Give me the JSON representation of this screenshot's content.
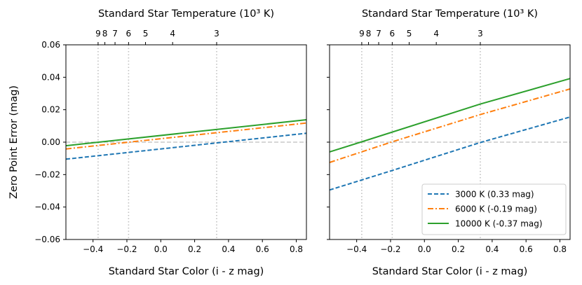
{
  "chart_data": [
    {
      "type": "line",
      "xlabel": "Standard Star Color (i - z mag)",
      "ylabel": "Zero Point Error (mag)",
      "top_xlabel": "Standard Star Temperature (10³ K)",
      "xlim": [
        -0.56,
        0.86
      ],
      "ylim": [
        -0.06,
        0.06
      ],
      "xticks": [
        -0.4,
        -0.2,
        0.0,
        0.2,
        0.4,
        0.6,
        0.8
      ],
      "xtick_labels": [
        "−0.4",
        "−0.2",
        "0.0",
        "0.2",
        "0.4",
        "0.6",
        "0.8"
      ],
      "yticks": [
        -0.06,
        -0.04,
        -0.02,
        0.0,
        0.02,
        0.04,
        0.06
      ],
      "ytick_labels": [
        "−0.06",
        "−0.04",
        "−0.02",
        "0.00",
        "0.02",
        "0.04",
        "0.06"
      ],
      "top_ticks": [
        {
          "label": "9",
          "x": -0.37
        },
        {
          "label": "8",
          "x": -0.33
        },
        {
          "label": "7",
          "x": -0.27
        },
        {
          "label": "6",
          "x": -0.19
        },
        {
          "label": "5",
          "x": -0.09
        },
        {
          "label": "4",
          "x": 0.07
        },
        {
          "label": "3",
          "x": 0.33
        }
      ],
      "vlines": [
        -0.37,
        -0.19,
        0.33
      ],
      "hline": 0.0,
      "series": [
        {
          "name": "3000 K (0.33 mag)",
          "color": "#1f77b4",
          "dash": "dashed",
          "x": [
            -0.56,
            0.86
          ],
          "y": [
            -0.0105,
            0.0055
          ]
        },
        {
          "name": "6000 K (-0.19 mag)",
          "color": "#ff7f0e",
          "dash": "dashdot",
          "x": [
            -0.56,
            0.86
          ],
          "y": [
            -0.0042,
            0.0118
          ]
        },
        {
          "name": "10000 K (-0.37 mag)",
          "color": "#2ca02c",
          "dash": "solid",
          "x": [
            -0.56,
            0.86
          ],
          "y": [
            -0.0022,
            0.0138
          ]
        }
      ],
      "show_ylabels": true
    },
    {
      "type": "line",
      "xlabel": "Standard Star Color (i - z mag)",
      "top_xlabel": "Standard Star Temperature (10³ K)",
      "xlim": [
        -0.56,
        0.86
      ],
      "ylim": [
        -0.06,
        0.06
      ],
      "xticks": [
        -0.4,
        -0.2,
        0.0,
        0.2,
        0.4,
        0.6,
        0.8
      ],
      "xtick_labels": [
        "−0.4",
        "−0.2",
        "0.0",
        "0.2",
        "0.4",
        "0.6",
        "0.8"
      ],
      "yticks": [
        -0.06,
        -0.04,
        -0.02,
        0.0,
        0.02,
        0.04,
        0.06
      ],
      "top_ticks": [
        {
          "label": "9",
          "x": -0.37
        },
        {
          "label": "8",
          "x": -0.33
        },
        {
          "label": "7",
          "x": -0.27
        },
        {
          "label": "6",
          "x": -0.19
        },
        {
          "label": "5",
          "x": -0.09
        },
        {
          "label": "4",
          "x": 0.07
        },
        {
          "label": "3",
          "x": 0.33
        }
      ],
      "vlines": [
        -0.37,
        -0.19,
        0.33
      ],
      "hline": 0.0,
      "series": [
        {
          "name": "3000 K (0.33 mag)",
          "color": "#1f77b4",
          "dash": "dashed",
          "x": [
            -0.56,
            -0.2,
            0.33,
            0.86
          ],
          "y": [
            -0.0295,
            -0.0178,
            -0.0002,
            0.0155
          ]
        },
        {
          "name": "6000 K (-0.19 mag)",
          "color": "#ff7f0e",
          "dash": "dashdot",
          "x": [
            -0.56,
            -0.19,
            0.33,
            0.86
          ],
          "y": [
            -0.0125,
            0.0002,
            0.017,
            0.0328
          ]
        },
        {
          "name": "10000 K (-0.37 mag)",
          "color": "#2ca02c",
          "dash": "solid",
          "x": [
            -0.56,
            -0.37,
            0.33,
            0.86
          ],
          "y": [
            -0.006,
            0.0002,
            0.0235,
            0.0392
          ]
        }
      ],
      "show_ylabels": false,
      "legend": "lower-right"
    }
  ]
}
